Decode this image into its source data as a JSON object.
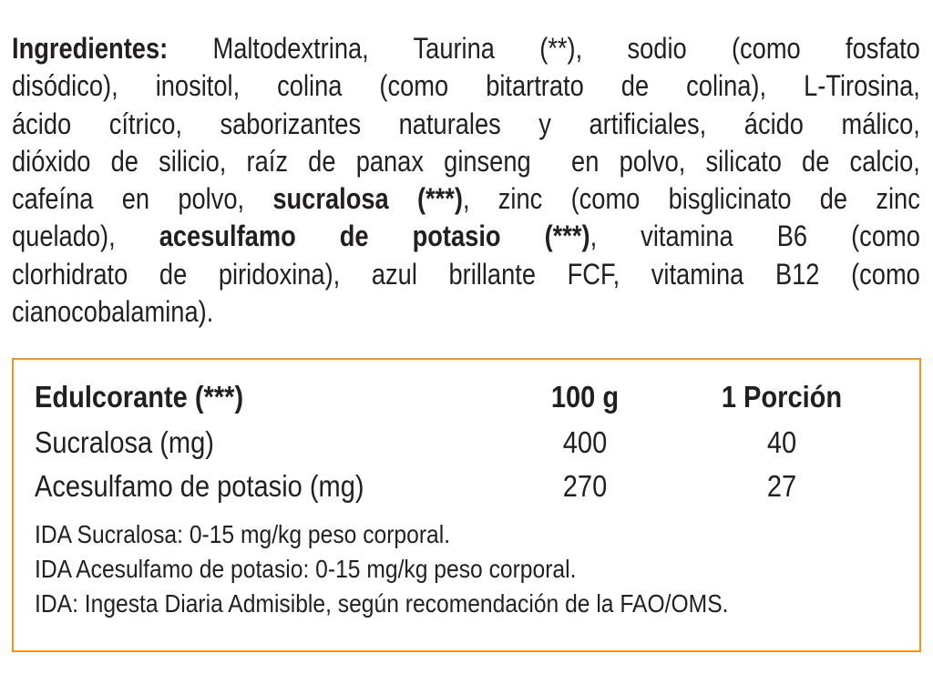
{
  "ingredients": {
    "lines": [
      [
        {
          "text": "Ingredientes:",
          "bold": true
        },
        {
          "text": " Maltodextrina, Taurina (**), sodio (como fosfato",
          "bold": false
        }
      ],
      [
        {
          "text": "disódico), inositol, colina (como bitartrato de colina), L-Tirosina,",
          "bold": false
        }
      ],
      [
        {
          "text": "ácido cítrico, saborizantes naturales y artificiales, ácido málico,",
          "bold": false
        }
      ],
      [
        {
          "text": "dióxido de silicio, raíz de panax ginseng  en polvo, silicato de calcio,",
          "bold": false
        }
      ],
      [
        {
          "text": "cafeína en polvo, ",
          "bold": false
        },
        {
          "text": "sucralosa (***)",
          "bold": true
        },
        {
          "text": ", zinc (como bisglicinato de zinc",
          "bold": false
        }
      ],
      [
        {
          "text": "quelado), ",
          "bold": false
        },
        {
          "text": "acesulfamo de potasio (***)",
          "bold": true
        },
        {
          "text": ", vitamina B6 (como",
          "bold": false
        }
      ],
      [
        {
          "text": "clorhidrato de piridoxina), azul brillante FCF, vitamina B12 (como",
          "bold": false
        }
      ],
      [
        {
          "text": "cianocobalamina).",
          "bold": false
        }
      ]
    ]
  },
  "sweetener_table": {
    "border_color": "#f7931e",
    "header": [
      "Edulcorante (***)",
      "100 g",
      "1 Porción"
    ],
    "rows": [
      [
        "Sucralosa (mg)",
        "400",
        "40"
      ],
      [
        "Acesulfamo de potasio (mg)",
        "270",
        "27"
      ]
    ],
    "notes": [
      "IDA Sucralosa: 0-15 mg/kg peso corporal.",
      "IDA Acesulfamo de potasio: 0-15 mg/kg peso corporal.",
      "IDA: Ingesta Diaria Admisible, según recomendación de la FAO/OMS."
    ]
  }
}
